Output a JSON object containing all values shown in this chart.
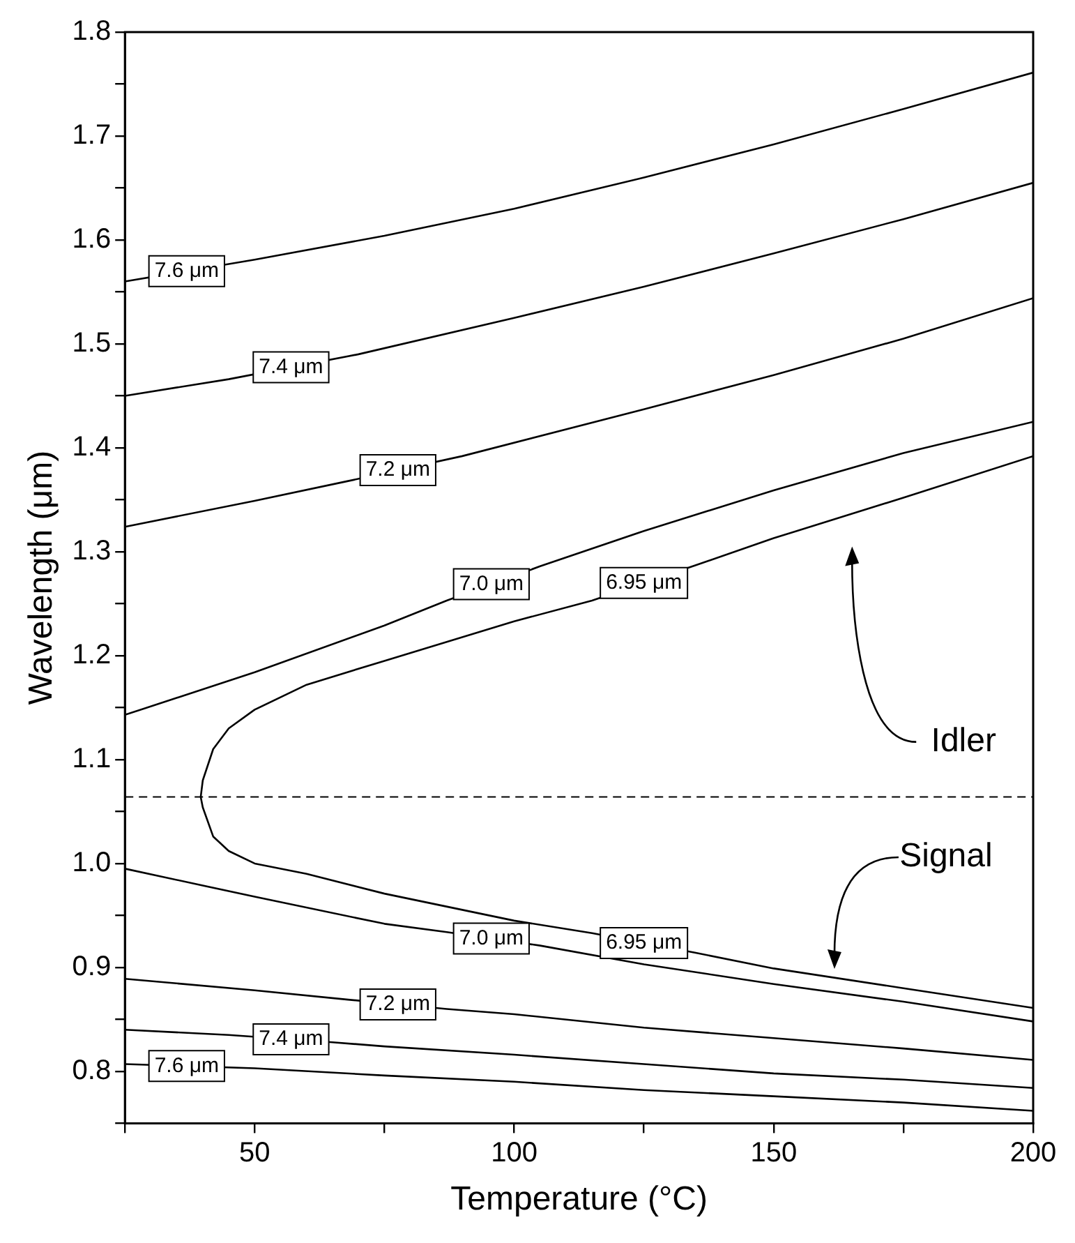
{
  "chart_data": {
    "type": "line",
    "xlabel": "Temperature (°C)",
    "ylabel": "Wavelength (μm)",
    "xlim": [
      25,
      200
    ],
    "ylim": [
      0.75,
      1.8
    ],
    "xticks": [
      {
        "value": 25,
        "label": null
      },
      50,
      {
        "value": 75,
        "label": null
      },
      100,
      {
        "value": 125,
        "label": null
      },
      150,
      {
        "value": 175,
        "label": null
      },
      200
    ],
    "yticks": [
      {
        "value": 0.75,
        "label": null
      },
      {
        "value": 0.8,
        "label": "0.8"
      },
      {
        "value": 0.85,
        "label": null
      },
      {
        "value": 0.9,
        "label": "0.9"
      },
      {
        "value": 0.95,
        "label": null
      },
      {
        "value": 1,
        "label": "1.0"
      },
      {
        "value": 1.05,
        "label": null
      },
      {
        "value": 1.1,
        "label": "1.1"
      },
      {
        "value": 1.15,
        "label": null
      },
      {
        "value": 1.2,
        "label": "1.2"
      },
      {
        "value": 1.25,
        "label": null
      },
      {
        "value": 1.3,
        "label": "1.3"
      },
      {
        "value": 1.35,
        "label": null
      },
      {
        "value": 1.4,
        "label": "1.4"
      },
      {
        "value": 1.45,
        "label": null
      },
      {
        "value": 1.5,
        "label": "1.5"
      },
      {
        "value": 1.55,
        "label": null
      },
      {
        "value": 1.6,
        "label": "1.6"
      },
      {
        "value": 1.65,
        "label": null
      },
      {
        "value": 1.7,
        "label": "1.7"
      },
      {
        "value": 1.75,
        "label": null
      },
      {
        "value": 1.8,
        "label": "1.8"
      }
    ],
    "grid": false,
    "legend": false,
    "marker": "none",
    "line_style": "solid",
    "series": [
      {
        "color": "#000000",
        "x": [
          25,
          50,
          75,
          100,
          125,
          150,
          175,
          200
        ],
        "values": [
          1.56,
          1.581,
          1.604,
          1.63,
          1.66,
          1.692,
          1.726,
          1.761
        ]
      },
      {
        "color": "#000000",
        "x": [
          25,
          45,
          70,
          100,
          125,
          150,
          175,
          200
        ],
        "values": [
          1.45,
          1.466,
          1.49,
          1.525,
          1.555,
          1.587,
          1.62,
          1.655
        ]
      },
      {
        "color": "#000000",
        "x": [
          25,
          50,
          68,
          90,
          125,
          150,
          175,
          200
        ],
        "values": [
          1.324,
          1.349,
          1.368,
          1.392,
          1.437,
          1.47,
          1.505,
          1.544
        ]
      },
      {
        "color": "#000000",
        "x": [
          25,
          50,
          75,
          87,
          105,
          125,
          150,
          175,
          200
        ],
        "values": [
          1.143,
          1.184,
          1.229,
          1.253,
          1.286,
          1.32,
          1.359,
          1.395,
          1.425
        ]
      },
      {
        "color": "#000000",
        "x": [
          200,
          175,
          150,
          135,
          115,
          100,
          75,
          60,
          50,
          45,
          42,
          40,
          39.6,
          40,
          42,
          45,
          50,
          60,
          75,
          100,
          115,
          135,
          150,
          175,
          200
        ],
        "values": [
          1.392,
          1.352,
          1.313,
          1.287,
          1.253,
          1.233,
          1.195,
          1.172,
          1.148,
          1.13,
          1.11,
          1.08,
          1.064,
          1.054,
          1.026,
          1.012,
          1.0,
          0.99,
          0.971,
          0.945,
          0.933,
          0.914,
          0.899,
          0.88,
          0.861
        ]
      },
      {
        "color": "#000000",
        "x": [
          25,
          50,
          75,
          87,
          105,
          125,
          150,
          175,
          200
        ],
        "values": [
          0.995,
          0.968,
          0.942,
          0.934,
          0.921,
          0.903,
          0.884,
          0.867,
          0.848
        ]
      },
      {
        "color": "#000000",
        "x": [
          25,
          50,
          68,
          87,
          100,
          125,
          150,
          175,
          200
        ],
        "values": [
          0.889,
          0.878,
          0.869,
          0.86,
          0.855,
          0.842,
          0.832,
          0.822,
          0.811
        ]
      },
      {
        "color": "#000000",
        "x": [
          25,
          45,
          65,
          75,
          100,
          125,
          150,
          175,
          200
        ],
        "values": [
          0.84,
          0.835,
          0.828,
          0.824,
          0.816,
          0.807,
          0.798,
          0.792,
          0.784
        ]
      },
      {
        "color": "#000000",
        "x": [
          25,
          50,
          75,
          100,
          125,
          150,
          175,
          200
        ],
        "values": [
          0.807,
          0.803,
          0.796,
          0.79,
          0.782,
          0.776,
          0.77,
          0.762
        ]
      }
    ],
    "ref_lines": [
      {
        "axis": "y",
        "value": 1.064,
        "label": null,
        "color": "#000000",
        "line_style": "dashed"
      }
    ],
    "annotations": [
      "Idler",
      "Signal",
      "7.6 μm",
      "7.4 μm",
      "7.2 μm",
      "7.0 μm",
      "6.95 μm",
      "6.95 μm",
      "7.0 μm",
      "7.2 μm",
      "7.4 μm",
      "7.6 μm"
    ]
  }
}
